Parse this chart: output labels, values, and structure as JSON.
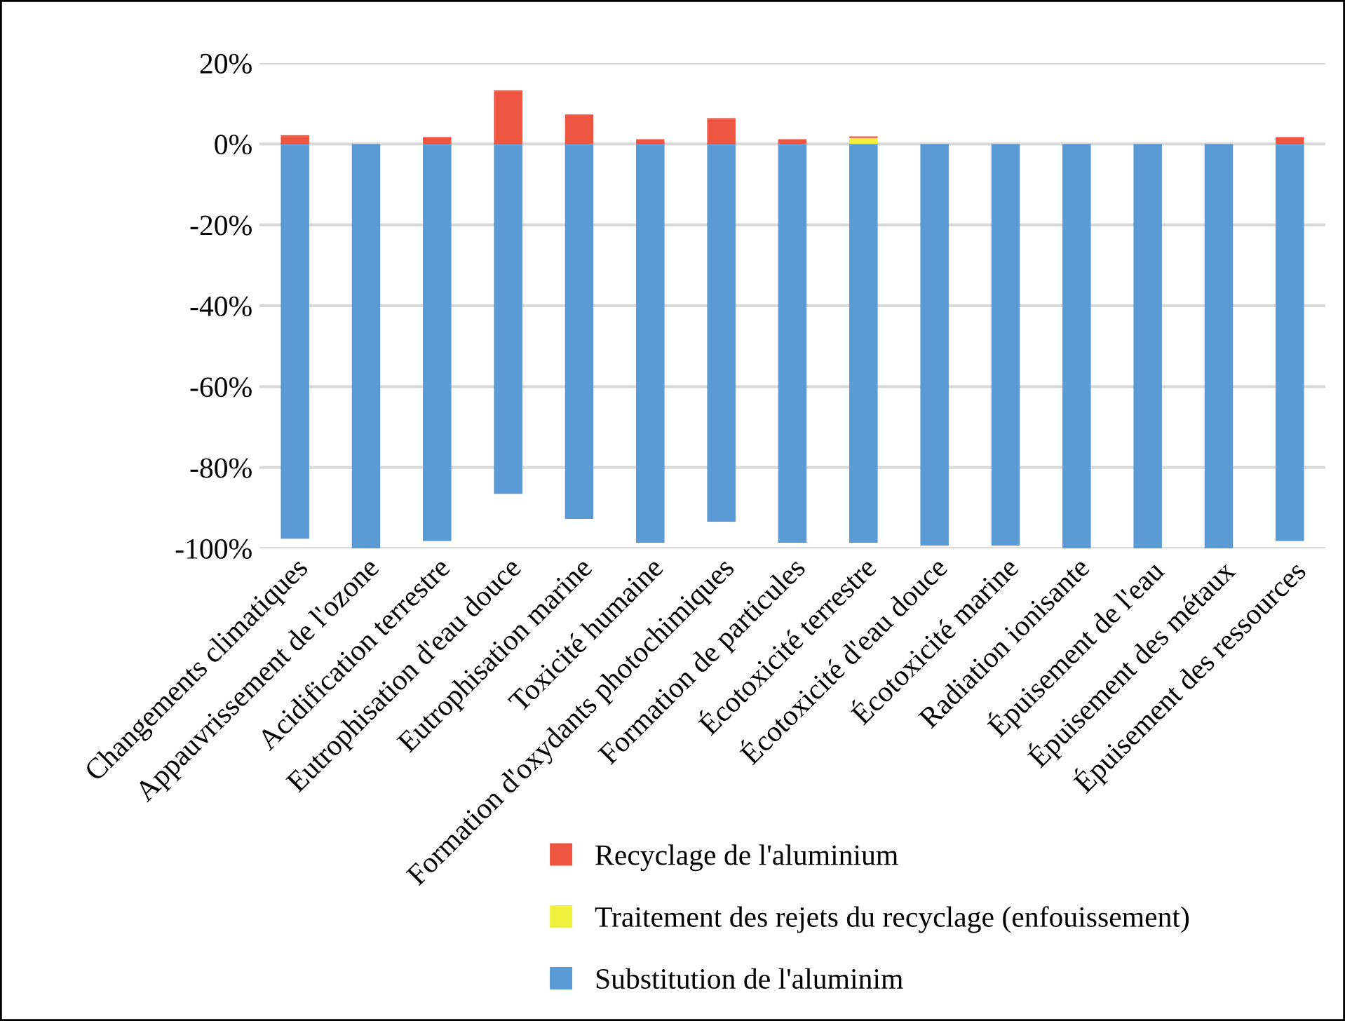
{
  "chart_data": {
    "type": "bar",
    "stacked": true,
    "categories": [
      "Changements climatiques",
      "Appauvrissement de l'ozone",
      "Acidification terrestre",
      "Eutrophisation d'eau douce",
      "Eutrophisation marine",
      "Toxicité humaine",
      "Formation d'oxydants photochimiques",
      "Formation de particules",
      "Écotoxicité terrestre",
      "Écotoxicité d'eau douce",
      "Écotoxicité marine",
      "Radiation ionisante",
      "Épuisement de l'eau",
      "Épuisement des métaux",
      "Épuisement des ressources"
    ],
    "series": [
      {
        "name": "Substitution de l'aluminim",
        "color": "#5b9bd5",
        "values": [
          -97.6,
          -100,
          -98.2,
          -86.5,
          -92.7,
          -98.6,
          -93.4,
          -98.6,
          -98.6,
          -99.3,
          -99.3,
          -100,
          -100,
          -100,
          -98.2
        ]
      },
      {
        "name": "Traitement des rejets du recyclage (enfouissement)",
        "color": "#eef03c",
        "values": [
          0,
          0,
          0,
          0,
          0,
          0,
          0,
          0,
          1.5,
          0,
          0,
          0,
          0,
          0,
          0
        ]
      },
      {
        "name": "Recyclage de l'aluminium",
        "color": "#ef5641",
        "values": [
          2.2,
          0,
          1.7,
          13.3,
          7.3,
          1.2,
          6.4,
          1.2,
          0.4,
          0,
          0,
          0,
          0,
          0,
          1.7
        ]
      }
    ],
    "ylim": [
      -100,
      20
    ],
    "yticks": [
      {
        "value": -100,
        "label": "-100%"
      },
      {
        "value": -80,
        "label": "-80%"
      },
      {
        "value": -60,
        "label": "-60%"
      },
      {
        "value": -40,
        "label": "-40%"
      },
      {
        "value": -20,
        "label": "-20%"
      },
      {
        "value": 0,
        "label": "0%"
      },
      {
        "value": 20,
        "label": "20%"
      }
    ],
    "grid": "y",
    "legend": "bottom"
  }
}
